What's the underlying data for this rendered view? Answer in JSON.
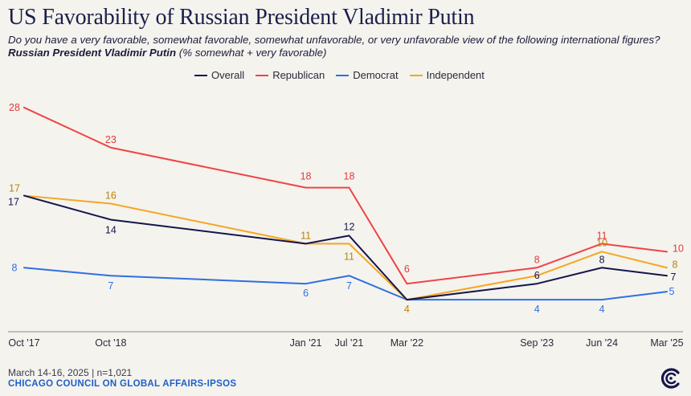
{
  "header": {
    "title": "US Favorability of Russian President Vladimir Putin",
    "subtitle_lead": "Do you have a very favorable, somewhat favorable, somewhat unfavorable, or very unfavorable view of the following international figures? ",
    "subtitle_bold": "Russian President Vladimir Putin",
    "subtitle_tail": " (% somewhat + very favorable)"
  },
  "footer": {
    "note": "March 14-16, 2025 | n=1,021",
    "source": "CHICAGO COUNCIL ON GLOBAL AFFAIRS-IPSOS",
    "logo_icon": "chicago-council-logo-icon"
  },
  "chart_data": {
    "type": "line",
    "title": "US Favorability of Russian President Vladimir Putin",
    "categories": [
      "Oct '17",
      "Oct '18",
      "Jan '21",
      "Jul '21",
      "Mar '22",
      "Sep '23",
      "Jun '24",
      "Mar '25"
    ],
    "x_dates": [
      "2017-10",
      "2018-10",
      "2021-01",
      "2021-07",
      "2022-03",
      "2023-09",
      "2024-06",
      "2025-03"
    ],
    "ylim": [
      0,
      30
    ],
    "grid": false,
    "legend_position": "top-center",
    "series": [
      {
        "name": "Overall",
        "color": "#15154d",
        "values": [
          17,
          14,
          11,
          12,
          4,
          6,
          8,
          7
        ]
      },
      {
        "name": "Republican",
        "color": "#ef4444",
        "values": [
          28,
          23,
          18,
          18,
          6,
          8,
          11,
          10
        ]
      },
      {
        "name": "Democrat",
        "color": "#2f6fe0",
        "values": [
          8,
          7,
          6,
          7,
          4,
          4,
          4,
          5
        ]
      },
      {
        "name": "Independent",
        "color": "#f5a623",
        "values": [
          17,
          16,
          11,
          11,
          4,
          7,
          10,
          8
        ]
      }
    ],
    "data_labels": [
      {
        "series": 0,
        "values": [
          "17",
          "14",
          "",
          "12",
          "",
          "6",
          "8",
          "7"
        ]
      },
      {
        "series": 1,
        "values": [
          "28",
          "23",
          "18",
          "18",
          "6",
          "8",
          "11",
          "10"
        ]
      },
      {
        "series": 2,
        "values": [
          "8",
          "7",
          "6",
          "7",
          "",
          "4",
          "4",
          "5"
        ]
      },
      {
        "series": 3,
        "values": [
          "17",
          "16",
          "11",
          "11",
          "4",
          "",
          "10",
          "8"
        ]
      }
    ],
    "label_colors": [
      "#15154d",
      "#e43b3b",
      "#2f6fe0",
      "#b98411"
    ]
  }
}
